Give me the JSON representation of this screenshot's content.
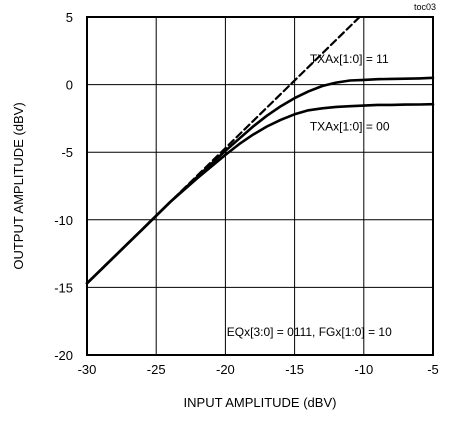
{
  "chart_data": {
    "type": "line",
    "title": "",
    "xlabel": "INPUT AMPLITUDE (dBV)",
    "ylabel": "OUTPUT AMPLITUDE (dBV)",
    "xlim": [
      -30,
      -5
    ],
    "ylim": [
      -20,
      5
    ],
    "xticks": [
      -30,
      -25,
      -20,
      -15,
      -10,
      -5
    ],
    "yticks": [
      5,
      0,
      -5,
      -10,
      -15,
      -20
    ],
    "grid": true,
    "corner_label": "toc03",
    "annotations": {
      "txa11": "TXAx[1:0] = 11",
      "txa00": "TXAx[1:0] = 00",
      "condition": "EQx[3:0] = 0111, FGx[1:0] = 10"
    },
    "series": [
      {
        "name": "TXAx[1:0] = 11",
        "style": "solid",
        "x": [
          -30,
          -28,
          -26,
          -24,
          -22,
          -20,
          -19,
          -18,
          -17,
          -16,
          -15,
          -14,
          -13,
          -12,
          -11,
          -10,
          -9,
          -8,
          -7,
          -6,
          -5
        ],
        "y": [
          -14.7,
          -12.7,
          -10.7,
          -8.7,
          -6.8,
          -4.9,
          -4.0,
          -3.1,
          -2.3,
          -1.6,
          -1.0,
          -0.5,
          -0.1,
          0.15,
          0.3,
          0.35,
          0.4,
          0.42,
          0.44,
          0.46,
          0.5
        ]
      },
      {
        "name": "TXAx[1:0] = 00",
        "style": "solid",
        "x": [
          -30,
          -28,
          -26,
          -24,
          -22,
          -20,
          -19,
          -18,
          -17,
          -16,
          -15,
          -14,
          -13,
          -12,
          -11,
          -10,
          -9,
          -8,
          -7,
          -6,
          -5
        ],
        "y": [
          -14.7,
          -12.7,
          -10.7,
          -8.7,
          -6.9,
          -5.2,
          -4.4,
          -3.7,
          -3.1,
          -2.6,
          -2.2,
          -1.9,
          -1.75,
          -1.65,
          -1.6,
          -1.55,
          -1.5,
          -1.5,
          -1.48,
          -1.47,
          -1.45
        ]
      },
      {
        "name": "",
        "style": "dashed",
        "x": [
          -30,
          -10.3
        ],
        "y": [
          -14.7,
          5
        ]
      }
    ]
  }
}
